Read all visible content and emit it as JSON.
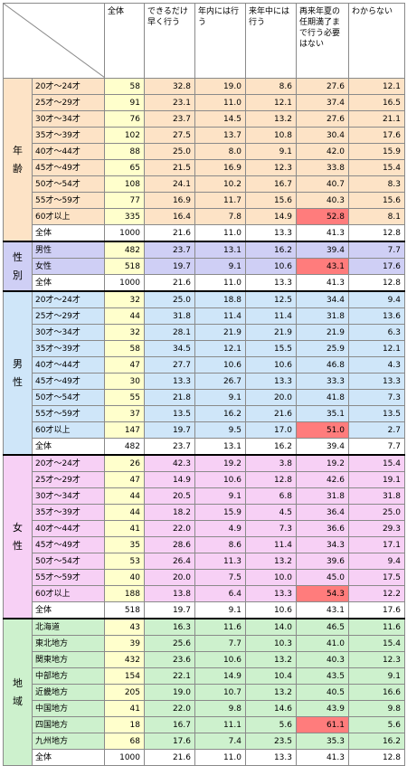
{
  "headers": [
    "全体",
    "できるだけ早く行う",
    "年内には行う",
    "来年中には行う",
    "再来年夏の任期満了まで行う必要はない",
    "わからない"
  ],
  "colors": {
    "age": "#fde3c6",
    "gender": "#cfcff5",
    "male": "#cfe6f9",
    "female": "#f7d0f5",
    "region": "#cdf1cd",
    "highlight": "#ff7c7c",
    "count_col": "#ffffcc"
  },
  "sections": [
    {
      "label": [
        "年",
        "齢"
      ],
      "key": "age",
      "rows": [
        {
          "label": "20才～24才",
          "values": [
            "58",
            "32.8",
            "19.0",
            "8.6",
            "27.6",
            "12.1"
          ]
        },
        {
          "label": "25才～29才",
          "values": [
            "91",
            "23.1",
            "11.0",
            "12.1",
            "37.4",
            "16.5"
          ]
        },
        {
          "label": "30才～34才",
          "values": [
            "76",
            "23.7",
            "14.5",
            "13.2",
            "27.6",
            "21.1"
          ]
        },
        {
          "label": "35才～39才",
          "values": [
            "102",
            "27.5",
            "13.7",
            "10.8",
            "30.4",
            "17.6"
          ]
        },
        {
          "label": "40才～44才",
          "values": [
            "88",
            "25.0",
            "8.0",
            "9.1",
            "42.0",
            "15.9"
          ]
        },
        {
          "label": "45才～49才",
          "values": [
            "65",
            "21.5",
            "16.9",
            "12.3",
            "33.8",
            "15.4"
          ]
        },
        {
          "label": "50才～54才",
          "values": [
            "108",
            "24.1",
            "10.2",
            "16.7",
            "40.7",
            "8.3"
          ]
        },
        {
          "label": "55才～59才",
          "values": [
            "77",
            "16.9",
            "11.7",
            "15.6",
            "40.3",
            "15.6"
          ]
        },
        {
          "label": "60才以上",
          "values": [
            "335",
            "16.4",
            "7.8",
            "14.9",
            "52.8",
            "8.1"
          ],
          "highlight": 4
        }
      ],
      "total": {
        "label": "全体",
        "values": [
          "1000",
          "21.6",
          "11.0",
          "13.3",
          "41.3",
          "12.8"
        ]
      }
    },
    {
      "label": [
        "性",
        "別"
      ],
      "key": "gender",
      "rows": [
        {
          "label": "男性",
          "values": [
            "482",
            "23.7",
            "13.1",
            "16.2",
            "39.4",
            "7.7"
          ]
        },
        {
          "label": "女性",
          "values": [
            "518",
            "19.7",
            "9.1",
            "10.6",
            "43.1",
            "17.6"
          ],
          "highlight": 4
        }
      ],
      "total": {
        "label": "全体",
        "values": [
          "1000",
          "21.6",
          "11.0",
          "13.3",
          "41.3",
          "12.8"
        ]
      }
    },
    {
      "label": [
        "男",
        "性"
      ],
      "key": "male",
      "rows": [
        {
          "label": "20才～24才",
          "values": [
            "32",
            "25.0",
            "18.8",
            "12.5",
            "34.4",
            "9.4"
          ]
        },
        {
          "label": "25才～29才",
          "values": [
            "44",
            "31.8",
            "11.4",
            "11.4",
            "31.8",
            "13.6"
          ]
        },
        {
          "label": "30才～34才",
          "values": [
            "32",
            "28.1",
            "21.9",
            "21.9",
            "21.9",
            "6.3"
          ]
        },
        {
          "label": "35才～39才",
          "values": [
            "58",
            "34.5",
            "12.1",
            "15.5",
            "25.9",
            "12.1"
          ]
        },
        {
          "label": "40才～44才",
          "values": [
            "47",
            "27.7",
            "10.6",
            "10.6",
            "46.8",
            "4.3"
          ]
        },
        {
          "label": "45才～49才",
          "values": [
            "30",
            "13.3",
            "26.7",
            "13.3",
            "33.3",
            "13.3"
          ]
        },
        {
          "label": "50才～54才",
          "values": [
            "55",
            "21.8",
            "9.1",
            "20.0",
            "41.8",
            "7.3"
          ]
        },
        {
          "label": "55才～59才",
          "values": [
            "37",
            "13.5",
            "16.2",
            "21.6",
            "35.1",
            "13.5"
          ]
        },
        {
          "label": "60才以上",
          "values": [
            "147",
            "19.7",
            "9.5",
            "17.0",
            "51.0",
            "2.7"
          ],
          "highlight": 4
        }
      ],
      "total": {
        "label": "全体",
        "values": [
          "482",
          "23.7",
          "13.1",
          "16.2",
          "39.4",
          "7.7"
        ]
      }
    },
    {
      "label": [
        "女",
        "性"
      ],
      "key": "female",
      "rows": [
        {
          "label": "20才～24才",
          "values": [
            "26",
            "42.3",
            "19.2",
            "3.8",
            "19.2",
            "15.4"
          ]
        },
        {
          "label": "25才～29才",
          "values": [
            "47",
            "14.9",
            "10.6",
            "12.8",
            "42.6",
            "19.1"
          ]
        },
        {
          "label": "30才～34才",
          "values": [
            "44",
            "20.5",
            "9.1",
            "6.8",
            "31.8",
            "31.8"
          ]
        },
        {
          "label": "35才～39才",
          "values": [
            "44",
            "18.2",
            "15.9",
            "4.5",
            "36.4",
            "25.0"
          ]
        },
        {
          "label": "40才～44才",
          "values": [
            "41",
            "22.0",
            "4.9",
            "7.3",
            "36.6",
            "29.3"
          ]
        },
        {
          "label": "45才～49才",
          "values": [
            "35",
            "28.6",
            "8.6",
            "11.4",
            "34.3",
            "17.1"
          ]
        },
        {
          "label": "50才～54才",
          "values": [
            "53",
            "26.4",
            "11.3",
            "13.2",
            "39.6",
            "9.4"
          ]
        },
        {
          "label": "55才～59才",
          "values": [
            "40",
            "20.0",
            "7.5",
            "10.0",
            "45.0",
            "17.5"
          ]
        },
        {
          "label": "60才以上",
          "values": [
            "188",
            "13.8",
            "6.4",
            "13.3",
            "54.3",
            "12.2"
          ],
          "highlight": 4
        }
      ],
      "total": {
        "label": "全体",
        "values": [
          "518",
          "19.7",
          "9.1",
          "10.6",
          "43.1",
          "17.6"
        ]
      }
    },
    {
      "label": [
        "地",
        "域"
      ],
      "key": "region",
      "rows": [
        {
          "label": "北海道",
          "values": [
            "43",
            "16.3",
            "11.6",
            "14.0",
            "46.5",
            "11.6"
          ]
        },
        {
          "label": "東北地方",
          "values": [
            "39",
            "25.6",
            "7.7",
            "10.3",
            "41.0",
            "15.4"
          ]
        },
        {
          "label": "関東地方",
          "values": [
            "432",
            "23.6",
            "10.6",
            "13.2",
            "40.3",
            "12.3"
          ]
        },
        {
          "label": "中部地方",
          "values": [
            "154",
            "22.1",
            "14.9",
            "10.4",
            "43.5",
            "9.1"
          ]
        },
        {
          "label": "近畿地方",
          "values": [
            "205",
            "19.0",
            "10.7",
            "13.2",
            "40.5",
            "16.6"
          ]
        },
        {
          "label": "中国地方",
          "values": [
            "41",
            "22.0",
            "9.8",
            "14.6",
            "43.9",
            "9.8"
          ]
        },
        {
          "label": "四国地方",
          "values": [
            "18",
            "16.7",
            "11.1",
            "5.6",
            "61.1",
            "5.6"
          ],
          "highlight": 4
        },
        {
          "label": "九州地方",
          "values": [
            "68",
            "17.6",
            "7.4",
            "23.5",
            "35.3",
            "16.2"
          ]
        }
      ],
      "total": {
        "label": "全体",
        "values": [
          "1000",
          "21.6",
          "11.0",
          "13.3",
          "41.3",
          "12.8"
        ]
      }
    }
  ]
}
